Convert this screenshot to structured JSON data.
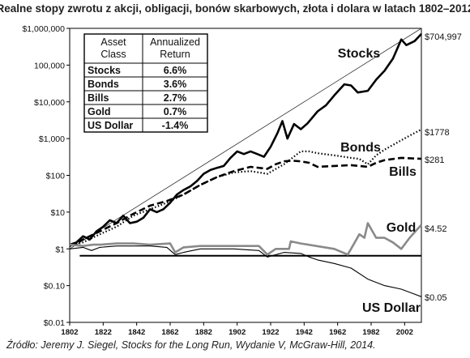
{
  "chart_data": {
    "type": "line",
    "title": "Realne stopy zwrotu z akcji, obligacji, bonów skarbowych, złota i dolara w latach 1802–2012",
    "y_scale": "log",
    "ylim": [
      0.01,
      1000000
    ],
    "xlim": [
      1802,
      2012
    ],
    "y_ticks": [
      {
        "value": 1000000,
        "label": "$1,000,000"
      },
      {
        "value": 100000,
        "label": "100,000"
      },
      {
        "value": 10000,
        "label": "$10,000"
      },
      {
        "value": 1000,
        "label": "$1,000"
      },
      {
        "value": 100,
        "label": "$100"
      },
      {
        "value": 10,
        "label": "$10"
      },
      {
        "value": 1,
        "label": "$1"
      },
      {
        "value": 0.1,
        "label": "$0.10"
      },
      {
        "value": 0.01,
        "label": "$0.01"
      }
    ],
    "x_ticks": [
      "1802",
      "1822",
      "1842",
      "1862",
      "1882",
      "1902",
      "1922",
      "1942",
      "1962",
      "1982",
      "2002"
    ],
    "x_tick_values": [
      1802,
      1822,
      1842,
      1862,
      1882,
      1902,
      1922,
      1942,
      1962,
      1982,
      2002
    ],
    "reference_level": 0.65,
    "trend_line": {
      "from": [
        1802,
        1
      ],
      "to": [
        2012,
        1000000
      ]
    },
    "series": [
      {
        "name": "Stocks",
        "end_label": "$704,997",
        "style": "solid-thick",
        "color": "#000000",
        "x": [
          1802,
          1806,
          1810,
          1814,
          1818,
          1822,
          1826,
          1830,
          1834,
          1838,
          1842,
          1846,
          1850,
          1854,
          1858,
          1862,
          1866,
          1870,
          1874,
          1878,
          1882,
          1886,
          1890,
          1894,
          1898,
          1902,
          1906,
          1910,
          1914,
          1918,
          1922,
          1926,
          1929,
          1932,
          1936,
          1940,
          1944,
          1950,
          1955,
          1960,
          1966,
          1970,
          1974,
          1980,
          1985,
          1990,
          1995,
          2000,
          2003,
          2008,
          2012
        ],
        "y": [
          1.3,
          1.5,
          2.2,
          1.8,
          3,
          4,
          6,
          5,
          8,
          5,
          5.5,
          7,
          12,
          10,
          12,
          18,
          30,
          40,
          50,
          70,
          110,
          140,
          160,
          180,
          300,
          450,
          380,
          450,
          380,
          320,
          600,
          1400,
          3000,
          1000,
          2500,
          1800,
          2600,
          5500,
          8000,
          15000,
          30000,
          28000,
          18000,
          20000,
          40000,
          70000,
          150000,
          500000,
          350000,
          450000,
          704997
        ]
      },
      {
        "name": "Bonds",
        "end_label": "$1778",
        "style": "dotted",
        "color": "#000000",
        "x": [
          1802,
          1810,
          1820,
          1830,
          1840,
          1850,
          1860,
          1870,
          1880,
          1890,
          1900,
          1910,
          1920,
          1930,
          1940,
          1945,
          1950,
          1960,
          1970,
          1975,
          1980,
          1985,
          1990,
          2000,
          2005,
          2012
        ],
        "y": [
          1.2,
          1.5,
          2.5,
          4,
          8,
          12,
          18,
          30,
          55,
          90,
          120,
          130,
          110,
          200,
          450,
          450,
          400,
          350,
          300,
          280,
          200,
          350,
          500,
          900,
          1200,
          1778
        ]
      },
      {
        "name": "Bills",
        "end_label": "$281",
        "style": "dashed",
        "color": "#000000",
        "x": [
          1802,
          1810,
          1820,
          1830,
          1840,
          1850,
          1860,
          1870,
          1880,
          1890,
          1900,
          1910,
          1920,
          1925,
          1930,
          1935,
          1940,
          1945,
          1950,
          1960,
          1970,
          1975,
          1980,
          1985,
          1990,
          2000,
          2012
        ],
        "y": [
          1.2,
          1.8,
          3,
          5,
          9,
          15,
          20,
          30,
          55,
          90,
          130,
          170,
          150,
          200,
          240,
          250,
          240,
          220,
          170,
          180,
          190,
          180,
          170,
          220,
          260,
          300,
          281
        ]
      },
      {
        "name": "Gold",
        "end_label": "$4.52",
        "style": "solid-gray",
        "color": "#8a8a8a",
        "x": [
          1802,
          1810,
          1816,
          1820,
          1830,
          1840,
          1850,
          1862,
          1865,
          1870,
          1880,
          1900,
          1915,
          1920,
          1925,
          1933,
          1934,
          1940,
          1960,
          1968,
          1970,
          1975,
          1978,
          1980,
          1985,
          1990,
          1995,
          2000,
          2005,
          2012
        ],
        "y": [
          1.3,
          1.2,
          1.3,
          1.3,
          1.4,
          1.4,
          1.3,
          1.4,
          0.8,
          1.1,
          1.2,
          1.2,
          1.2,
          0.7,
          1.0,
          1.0,
          1.6,
          1.4,
          1.0,
          0.7,
          1.0,
          2.5,
          2.0,
          5.0,
          2.0,
          2.0,
          1.5,
          1.0,
          2.0,
          4.52
        ]
      },
      {
        "name": "US Dollar",
        "end_label": "$0.05",
        "style": "solid-thin",
        "color": "#000000",
        "x": [
          1802,
          1810,
          1815,
          1820,
          1830,
          1840,
          1850,
          1860,
          1865,
          1870,
          1880,
          1900,
          1915,
          1920,
          1930,
          1940,
          1945,
          1950,
          1960,
          1970,
          1980,
          1990,
          2000,
          2012
        ],
        "y": [
          1.0,
          1.1,
          0.9,
          1.1,
          1.2,
          1.2,
          1.2,
          1.1,
          0.7,
          0.8,
          1.0,
          1.0,
          0.9,
          0.6,
          0.8,
          0.75,
          0.6,
          0.5,
          0.4,
          0.3,
          0.15,
          0.1,
          0.08,
          0.05
        ]
      }
    ],
    "table": {
      "headers": [
        "Asset Class",
        "Annualized Return"
      ],
      "rows": [
        [
          "Stocks",
          "6.6%"
        ],
        [
          "Bonds",
          "3.6%"
        ],
        [
          "Bills",
          "2.7%"
        ],
        [
          "Gold",
          "0.7%"
        ],
        [
          "US Dollar",
          "-1.4%"
        ]
      ]
    }
  },
  "source": "Źródło: Jeremy J. Siegel, Stocks for the Long Run, Wydanie V, McGraw-Hill, 2014."
}
